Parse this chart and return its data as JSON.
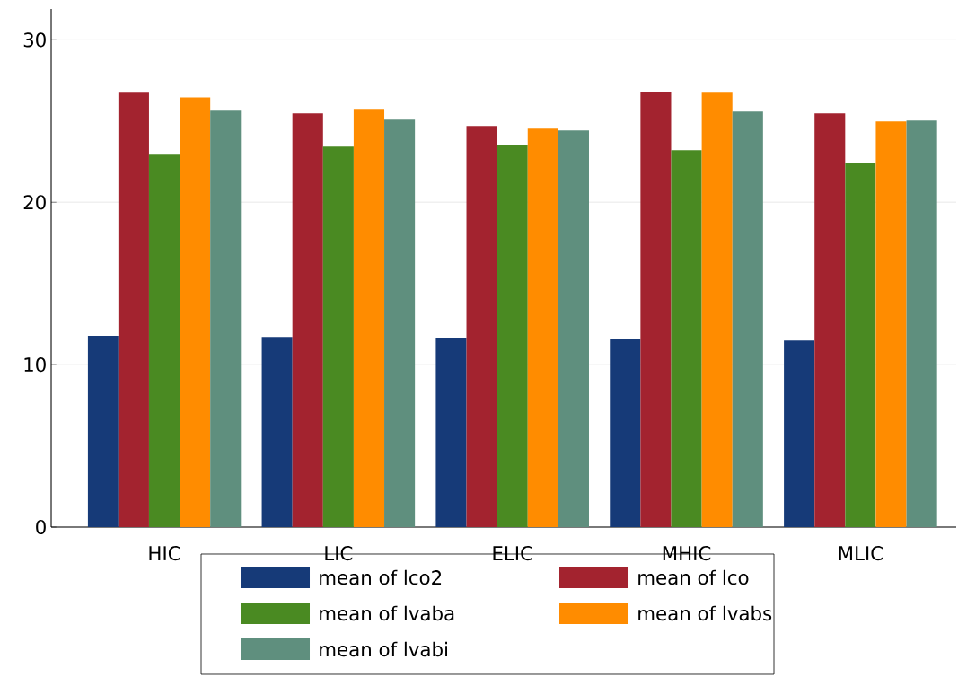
{
  "chart_data": {
    "type": "bar",
    "categories": [
      "HIC",
      "LIC",
      "ELIC",
      "MHIC",
      "MLIC"
    ],
    "series": [
      {
        "name": "mean of lco2",
        "color": "#163a78",
        "values": [
          11.77,
          11.71,
          11.66,
          11.6,
          11.49
        ]
      },
      {
        "name": "mean of lco",
        "color": "#a3232f",
        "values": [
          26.74,
          25.47,
          24.7,
          26.8,
          25.47
        ]
      },
      {
        "name": "mean of lvaba",
        "color": "#4a8a22",
        "values": [
          22.93,
          23.43,
          23.54,
          23.2,
          22.43
        ]
      },
      {
        "name": "mean of lvabs",
        "color": "#ff8c00",
        "values": [
          26.46,
          25.75,
          24.53,
          26.74,
          24.97
        ]
      },
      {
        "name": "mean of lvabi",
        "color": "#5f8f7e",
        "values": [
          25.64,
          25.08,
          24.42,
          25.58,
          25.03
        ]
      }
    ],
    "ylim": [
      0,
      31.9
    ],
    "yticks": [
      0,
      10,
      20,
      30
    ],
    "grid": "y",
    "legend": "bottom"
  }
}
